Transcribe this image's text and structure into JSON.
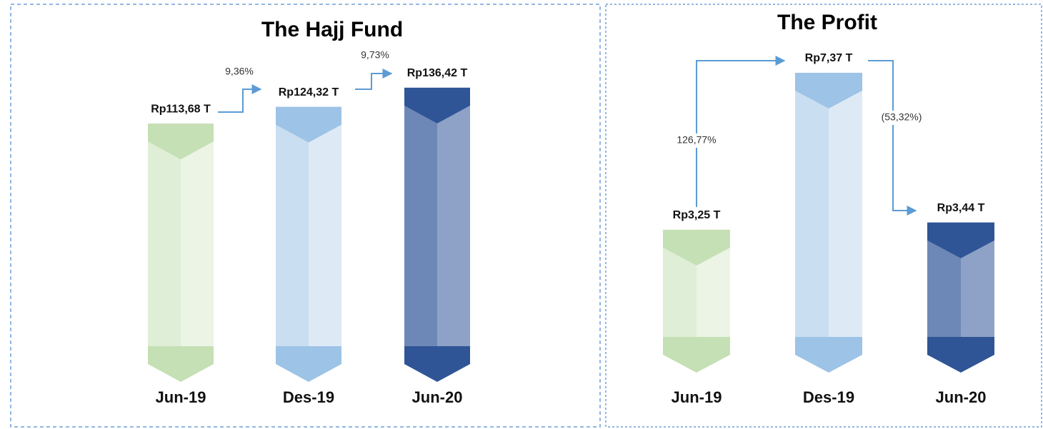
{
  "chart_data": [
    {
      "type": "bar",
      "title": "The Hajj Fund",
      "categories": [
        "Jun-19",
        "Des-19",
        "Jun-20"
      ],
      "values": [
        113.68,
        124.32,
        136.42
      ],
      "value_labels": [
        "Rp113,68 T",
        "Rp124,32 T",
        "Rp136,42 T"
      ],
      "annotations": [
        "9,36%",
        "9,73%"
      ],
      "colors": [
        "#c5e0b4",
        "#9dc3e6",
        "#2f5597"
      ],
      "ylim": [
        -50,
        140
      ]
    },
    {
      "type": "bar",
      "title": "The Profit",
      "categories": [
        "Jun-19",
        "Des-19",
        "Jun-20"
      ],
      "values": [
        3.25,
        7.37,
        3.44
      ],
      "value_labels": [
        "Rp3,25 T",
        "Rp7,37 T",
        "Rp3,44 T"
      ],
      "annotations": [
        "126,77%",
        "(53,32%)"
      ],
      "colors": [
        "#c5e0b4",
        "#9dc3e6",
        "#2f5597"
      ],
      "ylim": [
        -0.5,
        7.5
      ]
    }
  ]
}
